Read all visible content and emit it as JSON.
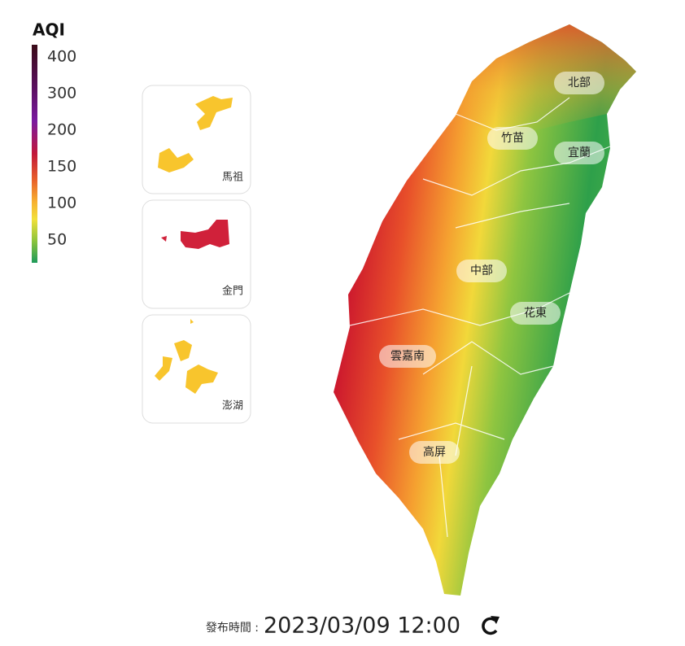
{
  "legend": {
    "title": "AQI",
    "ticks": [
      400,
      300,
      200,
      150,
      100,
      50
    ]
  },
  "insets": [
    {
      "label": "馬祖"
    },
    {
      "label": "金門"
    },
    {
      "label": "澎湖"
    }
  ],
  "regions": [
    {
      "label": "北部"
    },
    {
      "label": "竹苗"
    },
    {
      "label": "宜蘭"
    },
    {
      "label": "中部"
    },
    {
      "label": "花東"
    },
    {
      "label": "雲嘉南"
    },
    {
      "label": "高屏"
    }
  ],
  "footer": {
    "label": "發布時間 :",
    "time": "2023/03/09 12:00"
  }
}
